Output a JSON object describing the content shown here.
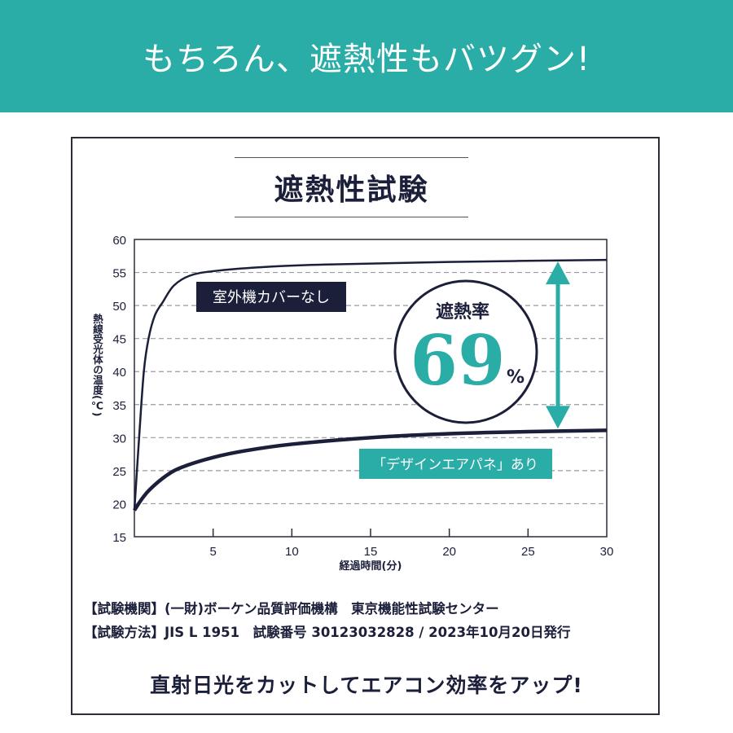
{
  "banner": {
    "text": "もちろん、遮熱性もバツグン!"
  },
  "title": "遮熱性試験",
  "chart_data": {
    "type": "line",
    "title": "遮熱性試験",
    "xlabel": "経過時間(分)",
    "ylabel": "熱線受光体の温度(℃)",
    "xlim": [
      0,
      30
    ],
    "ylim": [
      15,
      60
    ],
    "xticks": [
      5,
      10,
      15,
      20,
      25,
      30
    ],
    "yticks": [
      15,
      20,
      25,
      30,
      35,
      40,
      45,
      50,
      55,
      60
    ],
    "grid": "horizontal-dashed",
    "series": [
      {
        "name": "室外機カバーなし",
        "color": "#1c1f3a",
        "points": [
          [
            0,
            19
          ],
          [
            0.3,
            30
          ],
          [
            0.6,
            40
          ],
          [
            0.9,
            45
          ],
          [
            1.3,
            48.5
          ],
          [
            1.8,
            50.5
          ],
          [
            2.5,
            53
          ],
          [
            3.5,
            54.5
          ],
          [
            5,
            55.2
          ],
          [
            8,
            55.8
          ],
          [
            12,
            56.2
          ],
          [
            20,
            56.6
          ],
          [
            30,
            56.9
          ]
        ]
      },
      {
        "name": "「デザインエアパネ」あり",
        "color": "#1c1f3a",
        "points": [
          [
            0,
            19
          ],
          [
            0.5,
            20.8
          ],
          [
            1,
            22.2
          ],
          [
            2,
            24.2
          ],
          [
            3,
            25.5
          ],
          [
            5,
            27
          ],
          [
            7,
            28
          ],
          [
            10,
            29
          ],
          [
            15,
            30
          ],
          [
            20,
            30.6
          ],
          [
            25,
            30.9
          ],
          [
            30,
            31.1
          ]
        ]
      }
    ],
    "annotation": {
      "label": "遮熱率",
      "value": "69",
      "unit": "%"
    },
    "colors": {
      "accent": "#2aaca7",
      "dark": "#1c1f3a"
    }
  },
  "notes": [
    "【試験機関】(一財)ボーケン品質評価機構　東京機能性試験センター",
    "【試験方法】JIS L 1951　試験番号 30123032828 / 2023年10月20日発行"
  ],
  "slogan": "直射日光をカットしてエアコン効率をアップ!"
}
